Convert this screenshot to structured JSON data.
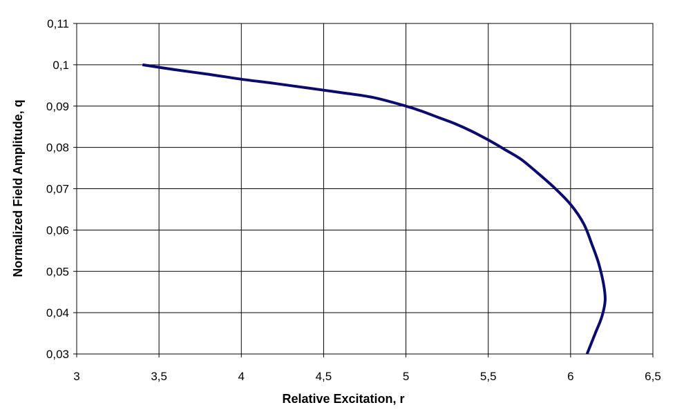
{
  "chart_data": {
    "type": "line",
    "xlabel": "Relative Excitation, r",
    "ylabel": "Normalized Field Amplitude,  q",
    "xlim": [
      3,
      6.5
    ],
    "ylim": [
      0.03,
      0.11
    ],
    "x_ticks": [
      "3",
      "3,5",
      "4",
      "4,5",
      "5",
      "5,5",
      "6",
      "6,5"
    ],
    "y_ticks": [
      "0,03",
      "0,04",
      "0,05",
      "0,06",
      "0,07",
      "0,08",
      "0,09",
      "0,1",
      "0,11"
    ],
    "grid": true,
    "legend": "none",
    "series": [
      {
        "color": "#0b0b6e",
        "points": [
          [
            3.4,
            0.1
          ],
          [
            3.6,
            0.0988
          ],
          [
            3.8,
            0.0977
          ],
          [
            4.0,
            0.0965
          ],
          [
            4.2,
            0.0955
          ],
          [
            4.4,
            0.0944
          ],
          [
            4.6,
            0.0933
          ],
          [
            4.8,
            0.0921
          ],
          [
            5.0,
            0.09
          ],
          [
            5.1,
            0.0887
          ],
          [
            5.2,
            0.0872
          ],
          [
            5.3,
            0.0857
          ],
          [
            5.4,
            0.0839
          ],
          [
            5.5,
            0.0818
          ],
          [
            5.6,
            0.0795
          ],
          [
            5.7,
            0.0771
          ],
          [
            5.8,
            0.0738
          ],
          [
            5.9,
            0.0703
          ],
          [
            6.0,
            0.0662
          ],
          [
            6.08,
            0.0615
          ],
          [
            6.13,
            0.0565
          ],
          [
            6.17,
            0.052
          ],
          [
            6.2,
            0.047
          ],
          [
            6.21,
            0.043
          ],
          [
            6.19,
            0.039
          ],
          [
            6.15,
            0.035
          ],
          [
            6.1,
            0.03
          ]
        ]
      }
    ]
  }
}
